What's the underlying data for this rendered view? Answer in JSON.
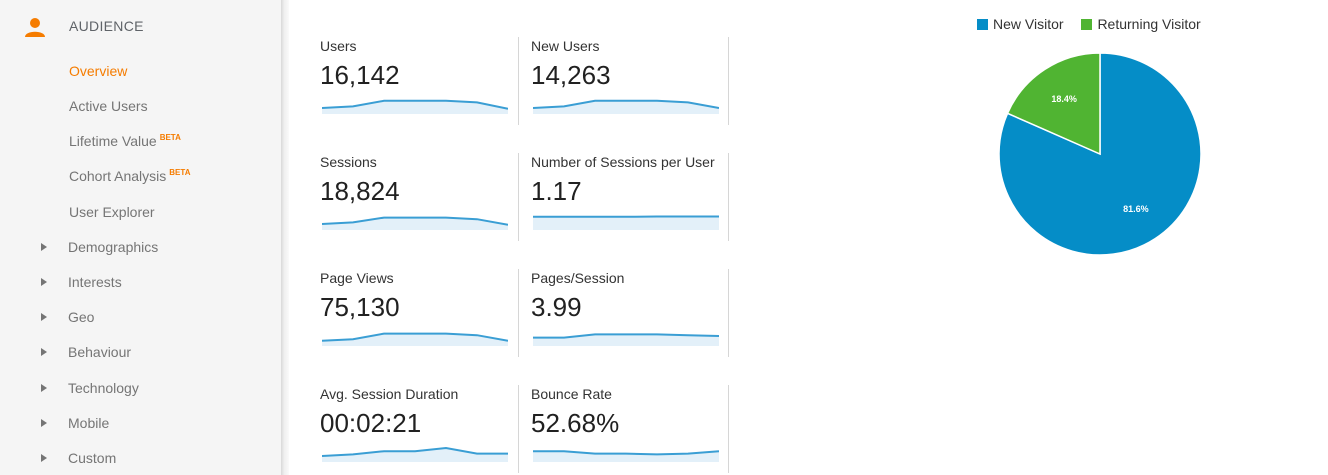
{
  "sidebar": {
    "section_title": "AUDIENCE",
    "items": [
      {
        "label": "Overview",
        "beta": ""
      },
      {
        "label": "Active Users",
        "beta": ""
      },
      {
        "label": "Lifetime Value",
        "beta": "BETA"
      },
      {
        "label": "Cohort Analysis",
        "beta": "BETA"
      },
      {
        "label": "User Explorer",
        "beta": ""
      }
    ],
    "groups": [
      "Demographics",
      "Interests",
      "Geo",
      "Behaviour",
      "Technology",
      "Mobile",
      "Custom"
    ],
    "active_color": "#f57c00"
  },
  "metrics": [
    {
      "name": "Users",
      "value": "16,142",
      "trend": [
        0.25,
        0.35,
        0.7,
        0.7,
        0.7,
        0.6,
        0.2
      ]
    },
    {
      "name": "New Users",
      "value": "14,263",
      "trend": [
        0.25,
        0.35,
        0.7,
        0.7,
        0.7,
        0.6,
        0.25
      ]
    },
    {
      "name": "Sessions",
      "value": "18,824",
      "trend": [
        0.25,
        0.35,
        0.65,
        0.65,
        0.65,
        0.55,
        0.2
      ]
    },
    {
      "name": "Number of Sessions per User",
      "value": "1.17",
      "trend": [
        0.7,
        0.7,
        0.7,
        0.7,
        0.72,
        0.72,
        0.72
      ]
    },
    {
      "name": "Page Views",
      "value": "75,130",
      "trend": [
        0.2,
        0.3,
        0.65,
        0.65,
        0.65,
        0.55,
        0.2
      ]
    },
    {
      "name": "Pages/Session",
      "value": "3.99",
      "trend": [
        0.4,
        0.4,
        0.6,
        0.6,
        0.6,
        0.55,
        0.5
      ]
    },
    {
      "name": "Avg. Session Duration",
      "value": "00:02:21",
      "trend": [
        0.25,
        0.35,
        0.55,
        0.55,
        0.75,
        0.4,
        0.4
      ]
    },
    {
      "name": "Bounce Rate",
      "value": "52.68%",
      "trend": [
        0.55,
        0.55,
        0.4,
        0.4,
        0.35,
        0.4,
        0.55
      ]
    }
  ],
  "chart_data": {
    "type": "pie",
    "labels": [
      "New Visitor",
      "Returning Visitor"
    ],
    "values": [
      81.6,
      18.4
    ],
    "value_labels": [
      "81.6%",
      "18.4%"
    ],
    "colors": [
      "#058dc7",
      "#50b432"
    ],
    "legend_position": "top"
  },
  "colors": {
    "sparkline": "#3a9ed4",
    "sparkline_fill": "#e3f0f9"
  }
}
